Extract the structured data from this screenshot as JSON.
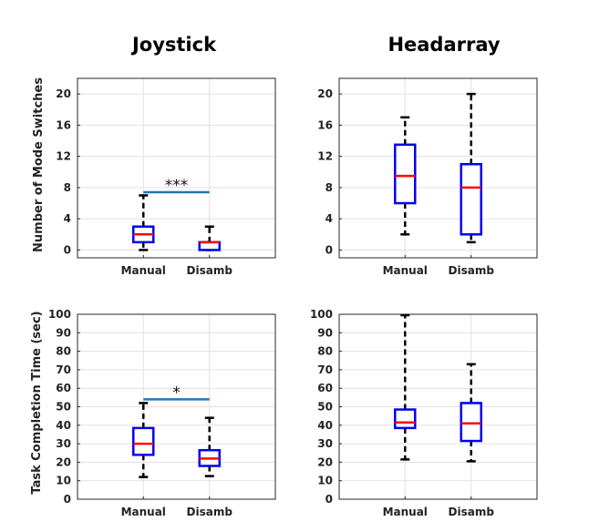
{
  "column_titles": [
    "Joystick",
    "Headarray"
  ],
  "row_labels": [
    "Number of Mode Switches",
    "Task Completion Time (sec)"
  ],
  "chart_data": [
    {
      "type": "box",
      "title": "Joystick",
      "ylabel": "Number of Mode Switches",
      "categories": [
        "Manual",
        "Disamb"
      ],
      "ylim": [
        -1,
        22
      ],
      "yticks": [
        0,
        4,
        8,
        12,
        16,
        20
      ],
      "grid": true,
      "boxes": [
        {
          "min": 0,
          "q1": 1,
          "median": 2,
          "q3": 3,
          "max": 7
        },
        {
          "min": 0,
          "q1": 0,
          "median": 1,
          "q3": 1,
          "max": 3
        }
      ],
      "significance": {
        "label": "***",
        "y": 7.4
      }
    },
    {
      "type": "box",
      "title": "Headarray",
      "ylabel": "",
      "categories": [
        "Manual",
        "Disamb"
      ],
      "ylim": [
        -1,
        22
      ],
      "yticks": [
        0,
        4,
        8,
        12,
        16,
        20
      ],
      "grid": true,
      "boxes": [
        {
          "min": 2,
          "q1": 6,
          "median": 9.5,
          "q3": 13.5,
          "max": 17
        },
        {
          "min": 1,
          "q1": 2,
          "median": 8,
          "q3": 11,
          "max": 20
        }
      ]
    },
    {
      "type": "box",
      "title": "",
      "ylabel": "Task Completion Time (sec)",
      "categories": [
        "Manual",
        "Disamb"
      ],
      "ylim": [
        0,
        100
      ],
      "yticks": [
        0,
        10,
        20,
        30,
        40,
        50,
        60,
        70,
        80,
        90,
        100
      ],
      "grid": true,
      "boxes": [
        {
          "min": 12,
          "q1": 24,
          "median": 30,
          "q3": 38.5,
          "max": 52
        },
        {
          "min": 12.5,
          "q1": 18,
          "median": 22,
          "q3": 26.5,
          "max": 44
        }
      ],
      "significance": {
        "label": "*",
        "y": 54
      }
    },
    {
      "type": "box",
      "title": "",
      "ylabel": "",
      "categories": [
        "Manual",
        "Disamb"
      ],
      "ylim": [
        0,
        100
      ],
      "yticks": [
        0,
        10,
        20,
        30,
        40,
        50,
        60,
        70,
        80,
        90,
        100
      ],
      "grid": true,
      "boxes": [
        {
          "min": 21.5,
          "q1": 38.5,
          "median": 41.5,
          "q3": 48.5,
          "max": 99.5
        },
        {
          "min": 20.5,
          "q1": 31.5,
          "median": 41,
          "q3": 52,
          "max": 73
        }
      ]
    }
  ],
  "colors": {
    "box": "#0000ee",
    "median": "#ff0000",
    "whisker": "#000000",
    "significance_bar": "#1f77b4",
    "grid": "#e1e1e1",
    "axes": "#262626"
  }
}
